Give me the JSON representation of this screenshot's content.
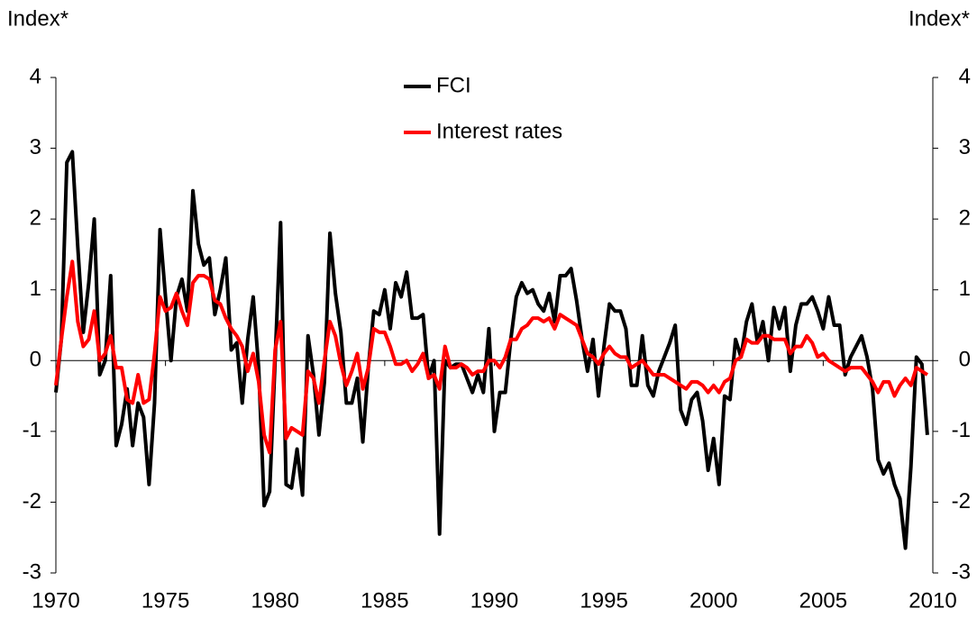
{
  "chart_data": {
    "type": "line",
    "ylabel": "Index*",
    "y2label": "Index*",
    "xlim": [
      1970,
      2010
    ],
    "xticks": [
      1970,
      1975,
      1980,
      1985,
      1990,
      1995,
      2000,
      2005,
      2010
    ],
    "ylim": [
      -3,
      4
    ],
    "yticks": [
      -3,
      -2,
      -1,
      0,
      1,
      2,
      3,
      4
    ],
    "y2lim": [
      -3,
      4
    ],
    "y2ticks": [
      -3,
      -2,
      -1,
      0,
      1,
      2,
      3,
      4
    ],
    "legend": "top",
    "x": [
      1970,
      1970.25,
      1970.5,
      1970.75,
      1971,
      1971.25,
      1971.5,
      1971.75,
      1972,
      1972.25,
      1972.5,
      1972.75,
      1973,
      1973.25,
      1973.5,
      1973.75,
      1974,
      1974.25,
      1974.5,
      1974.75,
      1975,
      1975.25,
      1975.5,
      1975.75,
      1976,
      1976.25,
      1976.5,
      1976.75,
      1977,
      1977.25,
      1977.5,
      1977.75,
      1978,
      1978.25,
      1978.5,
      1978.75,
      1979,
      1979.25,
      1979.5,
      1979.75,
      1980,
      1980.25,
      1980.5,
      1980.75,
      1981,
      1981.25,
      1981.5,
      1981.75,
      1982,
      1982.25,
      1982.5,
      1982.75,
      1983,
      1983.25,
      1983.5,
      1983.75,
      1984,
      1984.25,
      1984.5,
      1984.75,
      1985,
      1985.25,
      1985.5,
      1985.75,
      1986,
      1986.25,
      1986.5,
      1986.75,
      1987,
      1987.25,
      1987.5,
      1987.75,
      1988,
      1988.25,
      1988.5,
      1988.75,
      1989,
      1989.25,
      1989.5,
      1989.75,
      1990,
      1990.25,
      1990.5,
      1990.75,
      1991,
      1991.25,
      1991.5,
      1991.75,
      1992,
      1992.25,
      1992.5,
      1992.75,
      1993,
      1993.25,
      1993.5,
      1993.75,
      1994,
      1994.25,
      1994.5,
      1994.75,
      1995,
      1995.25,
      1995.5,
      1995.75,
      1996,
      1996.25,
      1996.5,
      1996.75,
      1997,
      1997.25,
      1997.5,
      1997.75,
      1998,
      1998.25,
      1998.5,
      1998.75,
      1999,
      1999.25,
      1999.5,
      1999.75,
      2000,
      2000.25,
      2000.5,
      2000.75,
      2001,
      2001.25,
      2001.5,
      2001.75,
      2002,
      2002.25,
      2002.5,
      2002.75,
      2003,
      2003.25,
      2003.5,
      2003.75,
      2004,
      2004.25,
      2004.5,
      2004.75,
      2005,
      2005.25,
      2005.5,
      2005.75,
      2006,
      2006.25,
      2006.5,
      2006.75,
      2007,
      2007.25,
      2007.5,
      2007.75,
      2008,
      2008.25,
      2008.5,
      2008.75,
      2009,
      2009.25,
      2009.5,
      2009.75
    ],
    "series": [
      {
        "name": "FCI",
        "color": "#000000",
        "values": [
          -0.45,
          0.3,
          2.8,
          2.95,
          1.6,
          0.4,
          1.1,
          2.0,
          -0.2,
          0.0,
          1.2,
          -1.2,
          -0.9,
          -0.4,
          -1.2,
          -0.6,
          -0.8,
          -1.75,
          -0.6,
          1.85,
          0.9,
          0.0,
          0.9,
          1.15,
          0.7,
          2.4,
          1.65,
          1.35,
          1.45,
          0.65,
          1.0,
          1.45,
          0.15,
          0.25,
          -0.6,
          0.3,
          0.9,
          -0.1,
          -2.05,
          -1.85,
          0.0,
          1.95,
          -1.75,
          -1.8,
          -1.25,
          -1.9,
          0.35,
          -0.2,
          -1.05,
          -0.3,
          1.8,
          0.95,
          0.4,
          -0.6,
          -0.6,
          -0.25,
          -1.15,
          -0.1,
          0.7,
          0.65,
          1.0,
          0.45,
          1.1,
          0.9,
          1.25,
          0.6,
          0.6,
          0.65,
          -0.25,
          0.0,
          -2.45,
          0.0,
          -0.1,
          -0.05,
          -0.05,
          -0.25,
          -0.45,
          -0.2,
          -0.45,
          0.45,
          -1.0,
          -0.45,
          -0.45,
          0.3,
          0.9,
          1.1,
          0.95,
          1.0,
          0.8,
          0.7,
          0.95,
          0.55,
          1.2,
          1.2,
          1.3,
          0.85,
          0.3,
          -0.15,
          0.3,
          -0.5,
          0.2,
          0.8,
          0.7,
          0.7,
          0.45,
          -0.35,
          -0.35,
          0.35,
          -0.35,
          -0.5,
          -0.15,
          0.05,
          0.25,
          0.5,
          -0.7,
          -0.9,
          -0.55,
          -0.45,
          -0.85,
          -1.55,
          -1.1,
          -1.75,
          -0.5,
          -0.55,
          0.3,
          0.05,
          0.55,
          0.8,
          0.25,
          0.55,
          0.0,
          0.75,
          0.45,
          0.75,
          -0.15,
          0.5,
          0.8,
          0.8,
          0.9,
          0.7,
          0.45,
          0.9,
          0.5,
          0.5,
          -0.2,
          0.05,
          0.2,
          0.35,
          0.05,
          -0.4,
          -1.4,
          -1.6,
          -1.45,
          -1.75,
          -1.95,
          -2.65,
          -1.5,
          0.05,
          -0.05,
          -1.05
        ]
      },
      {
        "name": "Interest rates",
        "color": "#ff0000",
        "values": [
          -0.35,
          0.3,
          0.9,
          1.4,
          0.55,
          0.2,
          0.3,
          0.7,
          0.0,
          0.1,
          0.35,
          -0.1,
          -0.1,
          -0.55,
          -0.6,
          -0.2,
          -0.6,
          -0.55,
          0.1,
          0.9,
          0.7,
          0.75,
          0.95,
          0.7,
          0.5,
          1.1,
          1.2,
          1.2,
          1.15,
          0.85,
          0.8,
          0.6,
          0.45,
          0.35,
          0.2,
          -0.15,
          0.1,
          -0.3,
          -1.05,
          -1.3,
          0.15,
          0.55,
          -1.1,
          -0.95,
          -1.0,
          -1.05,
          -0.15,
          -0.25,
          -0.6,
          0.0,
          0.55,
          0.35,
          -0.05,
          -0.35,
          -0.15,
          0.1,
          -0.4,
          -0.1,
          0.45,
          0.4,
          0.4,
          0.2,
          -0.05,
          -0.05,
          0.0,
          -0.15,
          -0.05,
          0.1,
          -0.25,
          -0.2,
          -0.4,
          0.2,
          -0.1,
          -0.1,
          -0.05,
          -0.1,
          -0.2,
          -0.15,
          -0.15,
          0.0,
          0.0,
          -0.1,
          0.05,
          0.3,
          0.3,
          0.45,
          0.5,
          0.6,
          0.6,
          0.55,
          0.6,
          0.45,
          0.65,
          0.6,
          0.55,
          0.5,
          0.3,
          0.1,
          0.05,
          -0.05,
          0.1,
          0.2,
          0.1,
          0.05,
          0.05,
          -0.1,
          -0.05,
          0.0,
          -0.1,
          -0.2,
          -0.2,
          -0.2,
          -0.25,
          -0.3,
          -0.35,
          -0.4,
          -0.3,
          -0.3,
          -0.35,
          -0.45,
          -0.35,
          -0.45,
          -0.3,
          -0.25,
          0.0,
          0.05,
          0.3,
          0.25,
          0.25,
          0.35,
          0.35,
          0.3,
          0.3,
          0.3,
          0.1,
          0.2,
          0.2,
          0.35,
          0.25,
          0.05,
          0.1,
          0.0,
          -0.05,
          -0.1,
          -0.15,
          -0.1,
          -0.1,
          -0.1,
          -0.2,
          -0.3,
          -0.45,
          -0.3,
          -0.3,
          -0.5,
          -0.35,
          -0.25,
          -0.35,
          -0.1,
          -0.15,
          -0.2
        ]
      }
    ]
  }
}
